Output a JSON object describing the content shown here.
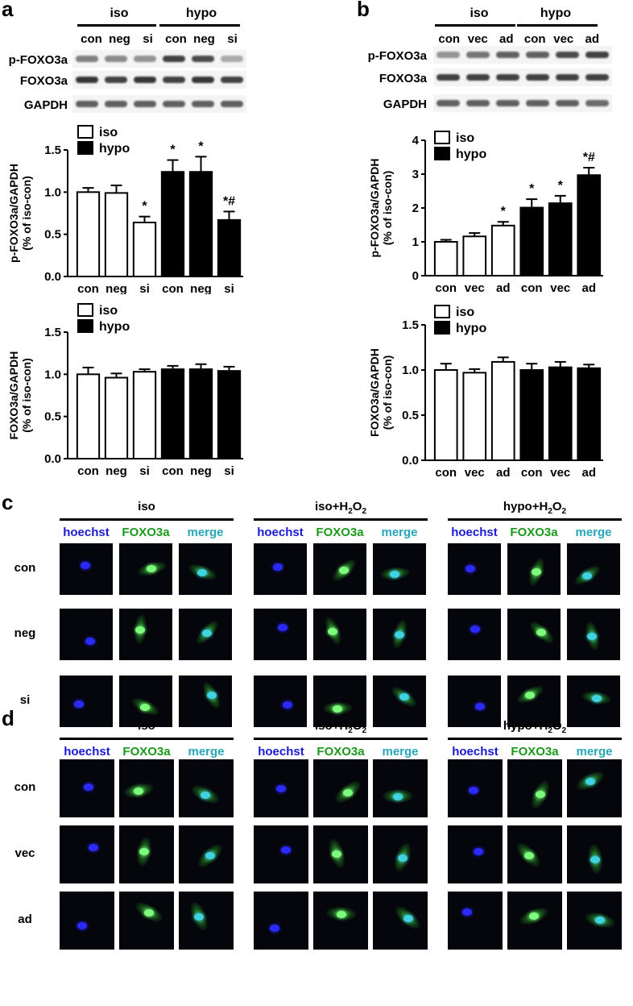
{
  "panels": {
    "a": {
      "letter": "a",
      "groups": [
        "iso",
        "hypo"
      ],
      "lanes": [
        "con",
        "neg",
        "si",
        "con",
        "neg",
        "si"
      ],
      "blots": [
        "p-FOXO3a",
        "FOXO3a",
        "GAPDH"
      ],
      "band_intensity": [
        [
          0.55,
          0.5,
          0.45,
          0.85,
          0.8,
          0.35
        ],
        [
          0.9,
          0.85,
          0.9,
          0.85,
          0.9,
          0.85
        ],
        [
          0.7,
          0.7,
          0.7,
          0.7,
          0.7,
          0.7
        ]
      ]
    },
    "b": {
      "letter": "b",
      "groups": [
        "iso",
        "hypo"
      ],
      "lanes": [
        "con",
        "vec",
        "ad",
        "con",
        "vec",
        "ad"
      ],
      "blots": [
        "p-FOXO3a",
        "FOXO3a",
        "GAPDH"
      ],
      "band_intensity": [
        [
          0.45,
          0.6,
          0.7,
          0.7,
          0.8,
          0.85
        ],
        [
          0.85,
          0.85,
          0.85,
          0.85,
          0.85,
          0.85
        ],
        [
          0.7,
          0.7,
          0.7,
          0.7,
          0.7,
          0.65
        ]
      ]
    },
    "c": {
      "letter": "c",
      "conditions": [
        "iso",
        "iso+H2O2",
        "hypo+H2O2"
      ],
      "condition_parts": [
        [
          "iso",
          "",
          ""
        ],
        [
          "iso+H",
          "2",
          "O",
          "2"
        ],
        [
          "hypo+H",
          "2",
          "O",
          "2"
        ]
      ],
      "channels": [
        "hoechst",
        "FOXO3a",
        "merge"
      ],
      "rows": [
        "con",
        "neg",
        "si"
      ]
    },
    "d": {
      "letter": "d",
      "conditions": [
        "iso",
        "iso+H2O2",
        "hypo+H2O2"
      ],
      "channels": [
        "hoechst",
        "FOXO3a",
        "merge"
      ],
      "rows": [
        "con",
        "vec",
        "ad"
      ]
    }
  },
  "colors": {
    "hoechst": "#1a1ad6",
    "foxo3a": "#1a9a1a",
    "merge": "#26a6b8",
    "iso_fill": "#ffffff",
    "hypo_fill": "#000000"
  },
  "chart_data": [
    {
      "id": "a-pFOXO3a",
      "type": "bar",
      "categories": [
        "con",
        "neg",
        "si",
        "con",
        "neg",
        "si"
      ],
      "groups": [
        "iso",
        "iso",
        "iso",
        "hypo",
        "hypo",
        "hypo"
      ],
      "values": [
        1.0,
        0.99,
        0.64,
        1.24,
        1.24,
        0.67
      ],
      "errors": [
        0.05,
        0.09,
        0.07,
        0.14,
        0.18,
        0.1
      ],
      "annotations": [
        "",
        "",
        "*",
        "*",
        "*",
        "*#"
      ],
      "ylabel": "p-FOXO3a/GAPDH\n(% of iso-con)",
      "ylim": [
        0,
        1.5
      ],
      "yticks": [
        "0.0",
        "0.5",
        "1.0",
        "1.5"
      ],
      "legend": [
        "iso",
        "hypo"
      ]
    },
    {
      "id": "a-FOXO3a",
      "type": "bar",
      "categories": [
        "con",
        "neg",
        "si",
        "con",
        "neg",
        "si"
      ],
      "groups": [
        "iso",
        "iso",
        "iso",
        "hypo",
        "hypo",
        "hypo"
      ],
      "values": [
        1.0,
        0.96,
        1.03,
        1.06,
        1.06,
        1.04
      ],
      "errors": [
        0.08,
        0.05,
        0.03,
        0.04,
        0.06,
        0.05
      ],
      "annotations": [
        "",
        "",
        "",
        "",
        "",
        ""
      ],
      "ylabel": "FOXO3a/GAPDH\n(% of iso-con)",
      "ylim": [
        0,
        1.5
      ],
      "yticks": [
        "0.0",
        "0.5",
        "1.0",
        "1.5"
      ],
      "legend": [
        "iso",
        "hypo"
      ]
    },
    {
      "id": "b-pFOXO3a",
      "type": "bar",
      "categories": [
        "con",
        "vec",
        "ad",
        "con",
        "vec",
        "ad"
      ],
      "groups": [
        "iso",
        "iso",
        "iso",
        "hypo",
        "hypo",
        "hypo"
      ],
      "values": [
        1.0,
        1.16,
        1.48,
        2.01,
        2.14,
        2.97
      ],
      "errors": [
        0.06,
        0.1,
        0.11,
        0.25,
        0.22,
        0.22
      ],
      "annotations": [
        "",
        "",
        "*",
        "*",
        "*",
        "*#"
      ],
      "ylabel": "p-FOXO3a/GAPDH\n(% of iso-con)",
      "ylim": [
        0,
        4
      ],
      "yticks": [
        "0",
        "1",
        "2",
        "3",
        "4"
      ],
      "legend": [
        "iso",
        "hypo"
      ]
    },
    {
      "id": "b-FOXO3a",
      "type": "bar",
      "categories": [
        "con",
        "vec",
        "ad",
        "con",
        "vec",
        "ad"
      ],
      "groups": [
        "iso",
        "iso",
        "iso",
        "hypo",
        "hypo",
        "hypo"
      ],
      "values": [
        1.0,
        0.97,
        1.09,
        1.0,
        1.03,
        1.02
      ],
      "errors": [
        0.07,
        0.04,
        0.05,
        0.07,
        0.06,
        0.04
      ],
      "annotations": [
        "",
        "",
        "",
        "",
        "",
        ""
      ],
      "ylabel": "FOXO3a/GAPDH\n(% of iso-con)",
      "ylim": [
        0,
        1.5
      ],
      "yticks": [
        "0.0",
        "0.5",
        "1.0",
        "1.5"
      ],
      "legend": [
        "iso",
        "hypo"
      ]
    }
  ]
}
